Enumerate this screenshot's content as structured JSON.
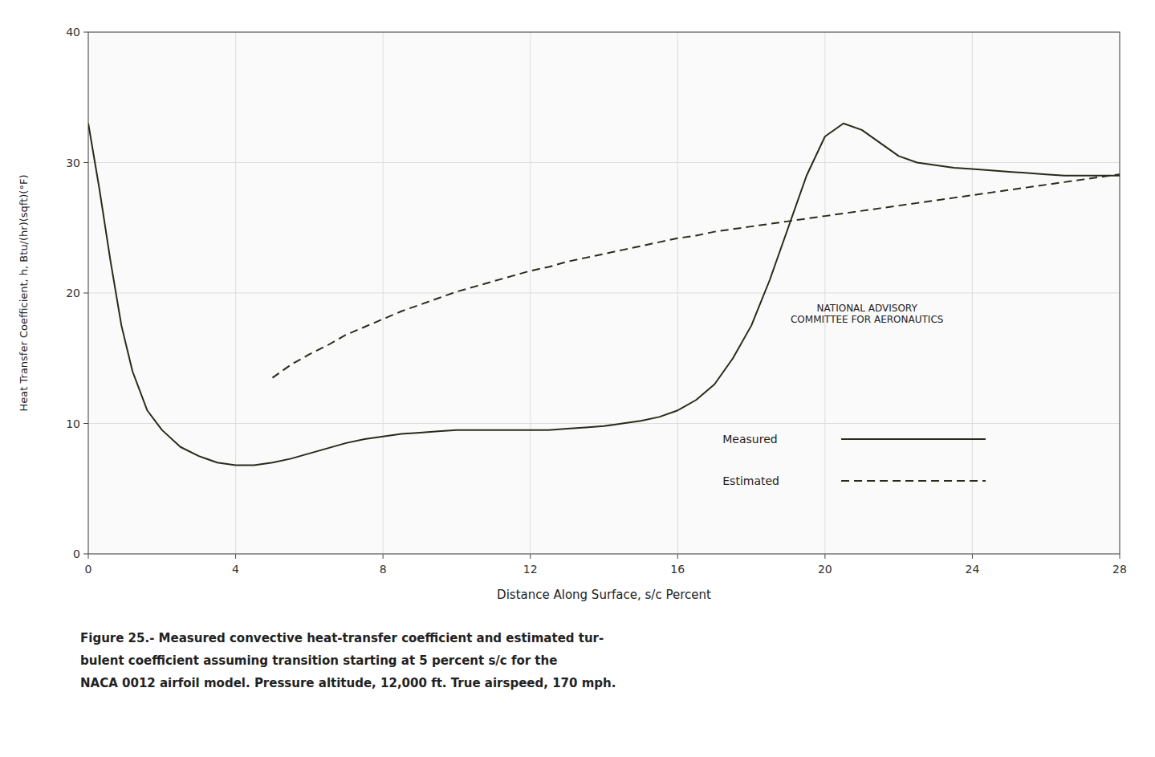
{
  "chart_data": {
    "type": "line",
    "x_label": "Distance Along Surface, s/c Percent",
    "y_label": "Heat Transfer Coefficient, h, Btu/(hr)(sqft)(°F)",
    "annotations": [
      "NATIONAL ADVISORY\nCOMMITTEE FOR AERONAUTICS"
    ],
    "caption": [
      "Figure 25.- Measured convective heat-transfer coefficient and estimated tur-",
      "bulent coefficient assuming transition starting at 5 percent s/c for the",
      "NACA 0012 airfoil model.  Pressure altitude, 12,000 ft.  True airspeed, 170 mph."
    ],
    "xlim": [
      0,
      28
    ],
    "ylim": [
      0,
      40
    ],
    "xticks": [
      0,
      4,
      8,
      12,
      16,
      20,
      24,
      28
    ],
    "yticks": [
      0,
      10,
      20,
      30,
      40
    ],
    "grid": true,
    "legend": "lower right",
    "series": [
      {
        "name": "Measured",
        "color": "#2a2a1a",
        "line_style": "solid",
        "x": [
          0,
          0.3,
          0.6,
          0.9,
          1.2,
          1.6,
          2.0,
          2.5,
          3.0,
          3.5,
          4.0,
          4.5,
          5.0,
          5.5,
          6.0,
          6.5,
          7.0,
          7.5,
          8.0,
          8.5,
          9.0,
          9.5,
          10.0,
          10.5,
          11.0,
          11.5,
          12.0,
          12.5,
          13.0,
          13.5,
          14.0,
          14.5,
          15.0,
          15.5,
          16.0,
          16.5,
          17.0,
          17.5,
          18.0,
          18.5,
          19.0,
          19.5,
          20.0,
          20.5,
          21.0,
          21.5,
          22.0,
          22.5,
          23.0,
          23.5,
          24.0,
          24.5,
          25.0,
          25.5,
          26.0,
          26.5,
          27.0,
          27.5,
          28.0
        ],
        "values": [
          33.0,
          28.0,
          22.5,
          17.5,
          14.0,
          11.0,
          9.5,
          8.2,
          7.5,
          7.0,
          6.8,
          6.8,
          7.0,
          7.3,
          7.7,
          8.1,
          8.5,
          8.8,
          9.0,
          9.2,
          9.3,
          9.4,
          9.5,
          9.5,
          9.5,
          9.5,
          9.5,
          9.5,
          9.6,
          9.7,
          9.8,
          10.0,
          10.2,
          10.5,
          11.0,
          11.8,
          13.0,
          15.0,
          17.5,
          21.0,
          25.0,
          29.0,
          32.0,
          33.0,
          32.5,
          31.5,
          30.5,
          30.0,
          29.8,
          29.6,
          29.5,
          29.4,
          29.3,
          29.2,
          29.1,
          29.0,
          29.0,
          29.0,
          29.0
        ]
      },
      {
        "name": "Estimated",
        "color": "#2a2a1a",
        "line_style": "dashed",
        "x": [
          5.0,
          5.5,
          6.0,
          6.5,
          7.0,
          7.5,
          8.0,
          8.5,
          9.0,
          9.5,
          10.0,
          10.5,
          11.0,
          11.5,
          12.0,
          12.5,
          13.0,
          13.5,
          14.0,
          14.5,
          15.0,
          15.5,
          16.0,
          16.5,
          17.0,
          17.5,
          18.0,
          18.5,
          19.0,
          19.5,
          20.0,
          20.5,
          21.0,
          21.5,
          22.0,
          22.5,
          23.0,
          23.5,
          24.0,
          24.5,
          25.0,
          25.5,
          26.0,
          26.5,
          27.0,
          27.5,
          28.0
        ],
        "values": [
          13.5,
          14.5,
          15.3,
          16.0,
          16.8,
          17.4,
          18.0,
          18.6,
          19.1,
          19.6,
          20.1,
          20.5,
          20.9,
          21.3,
          21.7,
          22.0,
          22.4,
          22.7,
          23.0,
          23.3,
          23.6,
          23.9,
          24.2,
          24.4,
          24.7,
          24.9,
          25.1,
          25.3,
          25.5,
          25.7,
          25.9,
          26.1,
          26.3,
          26.5,
          26.7,
          26.9,
          27.1,
          27.3,
          27.5,
          27.7,
          27.9,
          28.1,
          28.3,
          28.5,
          28.7,
          28.9,
          29.1
        ]
      }
    ]
  }
}
